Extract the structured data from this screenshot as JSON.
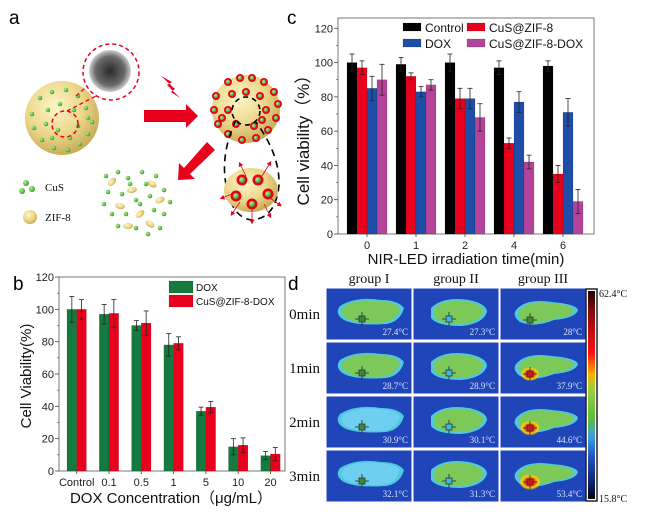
{
  "panels": {
    "a": {
      "label": "a",
      "legend": [
        {
          "name": "CuS",
          "icon": "green-dot-icon"
        },
        {
          "name": "ZIF-8",
          "icon": "yellow-sphere-icon"
        }
      ]
    },
    "b": {
      "label": "b"
    },
    "c": {
      "label": "c"
    },
    "d": {
      "label": "d"
    }
  },
  "chart_data": [
    {
      "id": "c",
      "type": "bar",
      "title": "",
      "xlabel": "NIR-LED irradiation time(min)",
      "ylabel": "Cell viability（%）",
      "ylim": [
        0,
        120
      ],
      "yticks": [
        0,
        20,
        40,
        60,
        80,
        100,
        120
      ],
      "categories": [
        "0",
        "1",
        "2",
        "4",
        "6"
      ],
      "legend_position": "top",
      "series": [
        {
          "name": "Control",
          "color": "#000000",
          "values": [
            100,
            99,
            100,
            97,
            98
          ],
          "errors": [
            5,
            4,
            5,
            4,
            3
          ]
        },
        {
          "name": "CuS@ZIF-8",
          "color": "#e8001c",
          "values": [
            97,
            92,
            79,
            53,
            35
          ],
          "errors": [
            4,
            2,
            6,
            3,
            5
          ]
        },
        {
          "name": "DOX",
          "color": "#1f4ea8",
          "values": [
            85,
            83,
            79,
            77,
            71
          ],
          "errors": [
            7,
            3,
            6,
            6,
            8
          ]
        },
        {
          "name": "CuS@ZIF-8-DOX",
          "color": "#b4449a",
          "values": [
            90,
            87,
            68,
            42,
            19
          ],
          "errors": [
            9,
            3,
            8,
            4,
            7
          ]
        }
      ]
    },
    {
      "id": "b",
      "type": "bar",
      "title": "",
      "xlabel": "DOX Concentration（μg/mL）",
      "ylabel": "Cell Viability(%)",
      "ylim": [
        0,
        120
      ],
      "yticks": [
        0,
        20,
        40,
        60,
        80,
        100,
        120
      ],
      "categories": [
        "Control",
        "0.1",
        "0.5",
        "1",
        "5",
        "10",
        "20"
      ],
      "legend_position": "top-right",
      "series": [
        {
          "name": "DOX",
          "color": "#147a3d",
          "values": [
            100,
            97,
            90,
            78,
            37,
            15,
            9.5
          ],
          "errors": [
            8,
            6,
            3,
            7,
            2.5,
            5,
            2.5
          ]
        },
        {
          "name": "CuS@ZIF-8-DOX",
          "color": "#e8001c",
          "values": [
            100,
            97.5,
            91.5,
            79,
            39.5,
            16,
            10.5
          ],
          "errors": [
            6,
            8.5,
            7.5,
            4,
            3.5,
            4.5,
            4
          ]
        }
      ]
    }
  ],
  "thermal": {
    "columns": [
      "group I",
      "group II",
      "group III"
    ],
    "rows": [
      {
        "label": "0min",
        "temps": [
          "27.4°C",
          "27.3°C",
          "28°C"
        ],
        "heat": [
          0,
          0,
          0.15
        ]
      },
      {
        "label": "1min",
        "temps": [
          "28.7°C",
          "28.9°C",
          "37.9°C"
        ],
        "heat": [
          0,
          0,
          0.7
        ]
      },
      {
        "label": "2min",
        "temps": [
          "30.9°C",
          "30.1°C",
          "44.6°C"
        ],
        "heat": [
          0,
          0,
          0.85
        ]
      },
      {
        "label": "3min",
        "temps": [
          "32.1°C",
          "31.3°C",
          "53.4°C"
        ],
        "heat": [
          0,
          0,
          1.0
        ]
      }
    ],
    "colorbar": {
      "max": "62.4°C",
      "min": "15.8°C"
    }
  }
}
